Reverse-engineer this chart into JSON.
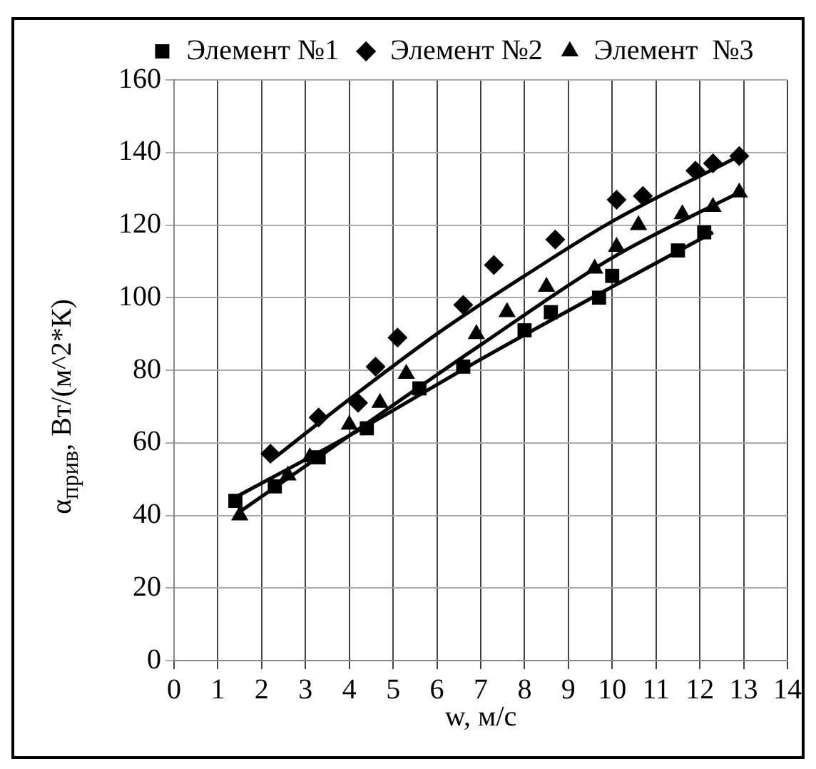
{
  "chart_data": {
    "type": "scatter",
    "xlabel": "w, м/с",
    "ylabel": "α$_{прив}$, Вт/(м^2*К)",
    "xlim": [
      0,
      14
    ],
    "xticks": [
      0,
      1,
      2,
      3,
      4,
      5,
      6,
      7,
      8,
      9,
      10,
      11,
      12,
      13,
      14
    ],
    "ylim": [
      0,
      160
    ],
    "yticks": [
      0,
      20,
      40,
      60,
      80,
      100,
      120,
      140,
      160
    ],
    "grid": true,
    "legend": "top",
    "series": [
      {
        "name": "Элемент №1",
        "color": "#000000",
        "marker": "square",
        "x": [
          1.4,
          2.3,
          3.3,
          4.4,
          5.6,
          6.6,
          8.0,
          8.6,
          9.7,
          10.0,
          11.5,
          12.1
        ],
        "values": [
          44,
          48,
          56,
          64,
          75,
          81,
          91,
          96,
          100,
          106,
          113,
          118
        ]
      },
      {
        "name": "Элемент №2",
        "color": "#000000",
        "marker": "diamond",
        "x": [
          2.2,
          3.3,
          4.2,
          4.6,
          5.1,
          6.6,
          7.3,
          8.7,
          10.1,
          10.7,
          11.9,
          12.3,
          12.9
        ],
        "values": [
          57,
          67,
          71,
          81,
          89,
          98,
          109,
          116,
          127,
          128,
          135,
          137,
          139
        ]
      },
      {
        "name": "Элемент  №3",
        "color": "#000000",
        "marker": "triangle",
        "x": [
          1.5,
          2.6,
          3.1,
          4.0,
          4.7,
          5.3,
          6.9,
          7.6,
          8.5,
          9.6,
          10.1,
          10.6,
          11.6,
          12.3,
          12.9
        ],
        "values": [
          40,
          51,
          56,
          65,
          71,
          79,
          90,
          96,
          103,
          108,
          114,
          120,
          123,
          125,
          129
        ]
      },
      {
        "type": "line",
        "color": "#000000",
        "marker": "none",
        "x": [
          1.4,
          4,
          7,
          10,
          12.3
        ],
        "values": [
          45,
          62,
          83,
          103,
          118
        ]
      },
      {
        "type": "line",
        "color": "#000000",
        "marker": "none",
        "x": [
          2.2,
          4,
          6,
          8,
          10,
          12.9
        ],
        "values": [
          55,
          72,
          90,
          106,
          121,
          139
        ]
      },
      {
        "type": "line",
        "color": "#000000",
        "marker": "none",
        "x": [
          1.5,
          4,
          7,
          10,
          12.9
        ],
        "values": [
          41,
          62,
          87,
          111,
          129
        ]
      }
    ]
  }
}
